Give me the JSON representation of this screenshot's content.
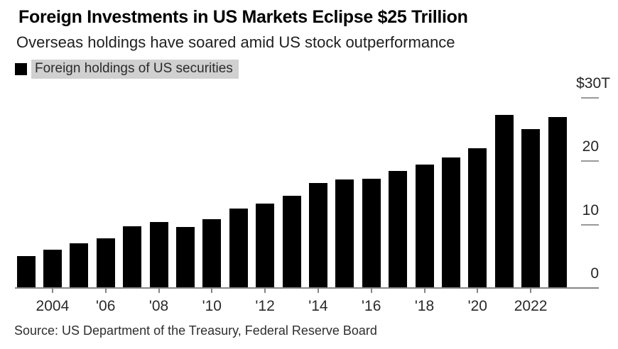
{
  "chart_data": {
    "type": "bar",
    "title": "Foreign Investments in US Markets Eclipse $25 Trillion",
    "subtitle": "Overseas holdings have soared amid US stock outperformance",
    "legend_label": "Foreign holdings of US securities",
    "source": "Source: US Department of the Treasury, Federal Reserve Board",
    "unit": "USD trillions",
    "x": [
      2003,
      2004,
      2005,
      2006,
      2007,
      2008,
      2009,
      2010,
      2011,
      2012,
      2013,
      2014,
      2015,
      2016,
      2017,
      2018,
      2019,
      2020,
      2021,
      2022,
      2023
    ],
    "values": [
      5.0,
      6.0,
      7.0,
      7.8,
      9.7,
      10.4,
      9.6,
      10.8,
      12.5,
      13.3,
      14.5,
      16.5,
      17.1,
      17.2,
      18.4,
      19.5,
      20.6,
      22.0,
      27.3,
      25.0,
      26.9
    ],
    "xticks": [
      {
        "year": 2004,
        "label": "2004"
      },
      {
        "year": 2006,
        "label": "'06"
      },
      {
        "year": 2008,
        "label": "'08"
      },
      {
        "year": 2010,
        "label": "'10"
      },
      {
        "year": 2012,
        "label": "'12"
      },
      {
        "year": 2014,
        "label": "'14"
      },
      {
        "year": 2016,
        "label": "'16"
      },
      {
        "year": 2018,
        "label": "'18"
      },
      {
        "year": 2020,
        "label": "'20"
      },
      {
        "year": 2022,
        "label": "2022"
      }
    ],
    "ytick_values": [
      0,
      10,
      20,
      30
    ],
    "ytick_labels": [
      "0",
      "10",
      "20",
      "$30T"
    ],
    "ylim": [
      0,
      30
    ],
    "grid": false,
    "value_axis_side": "right",
    "legend_position": "top-left",
    "bar_color": "#000000",
    "axis_color": "#858585",
    "tick_color": "#999999",
    "legend_highlight_color": "#d0d0d0",
    "text_color": "#262626"
  }
}
